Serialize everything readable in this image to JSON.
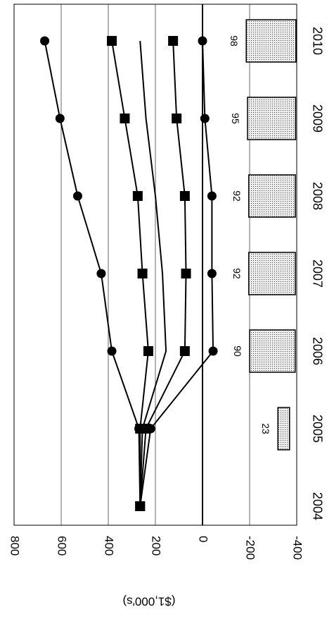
{
  "chart_data": {
    "type": "bar",
    "orientation": "rotated-90-clockwise",
    "ylabel": "($1,000's)",
    "ylim": [
      -400,
      800
    ],
    "yticks": [
      -400,
      -200,
      0,
      200,
      400,
      600,
      800
    ],
    "grid": true,
    "categories": [
      "2004",
      "2005",
      "2006",
      "2007",
      "2008",
      "2009",
      "2010"
    ],
    "bars": {
      "values": [
        null,
        23,
        90,
        92,
        92,
        95,
        98
      ]
    },
    "series": [
      {
        "name": "",
        "marker": "circle",
        "values": [
          265,
          270,
          385,
          430,
          530,
          605,
          670
        ]
      },
      {
        "name": "",
        "marker": "square",
        "values": [
          265,
          265,
          230,
          255,
          275,
          330,
          385
        ]
      },
      {
        "name": "",
        "marker": "none",
        "values": [
          265,
          255,
          155,
          170,
          200,
          240,
          265
        ]
      },
      {
        "name": "",
        "marker": "square",
        "values": [
          265,
          240,
          75,
          70,
          75,
          110,
          125
        ]
      },
      {
        "name": "",
        "marker": "circle",
        "values": [
          265,
          220,
          -45,
          -40,
          -40,
          -10,
          0
        ]
      }
    ]
  }
}
